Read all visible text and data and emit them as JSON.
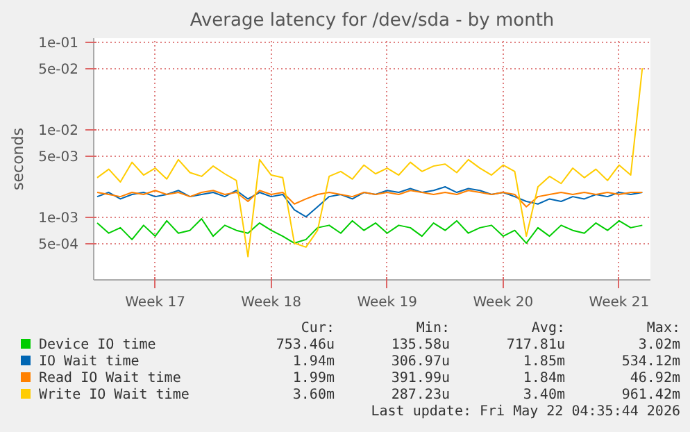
{
  "chart_data": {
    "type": "line",
    "title": "Average latency for /dev/sda - by month",
    "ylabel": "seconds",
    "categories": [
      null,
      null,
      null,
      null,
      null,
      "Week 17",
      null,
      null,
      null,
      null,
      null,
      null,
      null,
      null,
      null,
      "Week 18",
      null,
      null,
      null,
      null,
      null,
      null,
      null,
      null,
      null,
      "Week 19",
      null,
      null,
      null,
      null,
      null,
      null,
      null,
      null,
      null,
      "Week 20",
      null,
      null,
      null,
      null,
      null,
      null,
      null,
      null,
      null,
      "Week 21",
      null,
      null
    ],
    "series": [
      {
        "name": "Device IO time",
        "color": "#00cc00",
        "values": [
          0.00085,
          0.00065,
          0.00075,
          0.00055,
          0.0008,
          0.0006,
          0.0009,
          0.00065,
          0.0007,
          0.00095,
          0.0006,
          0.0008,
          0.0007,
          0.00065,
          0.00085,
          0.0007,
          0.0006,
          0.0005,
          0.00055,
          0.00075,
          0.0008,
          0.00065,
          0.0009,
          0.0007,
          0.00085,
          0.00065,
          0.0008,
          0.00075,
          0.0006,
          0.00085,
          0.0007,
          0.0009,
          0.00065,
          0.00075,
          0.0008,
          0.0006,
          0.0007,
          0.0005,
          0.00075,
          0.0006,
          0.0008,
          0.0007,
          0.00065,
          0.00085,
          0.0007,
          0.0009,
          0.00075,
          0.0008
        ]
      },
      {
        "name": "IO Wait time",
        "color": "#0066b3",
        "values": [
          0.0017,
          0.0019,
          0.0016,
          0.0018,
          0.0019,
          0.0017,
          0.0018,
          0.002,
          0.0017,
          0.0018,
          0.0019,
          0.0017,
          0.002,
          0.0016,
          0.0019,
          0.0017,
          0.0018,
          0.0012,
          0.001,
          0.0013,
          0.0017,
          0.0018,
          0.0016,
          0.0019,
          0.0018,
          0.002,
          0.0019,
          0.0021,
          0.0019,
          0.002,
          0.0022,
          0.0019,
          0.0021,
          0.002,
          0.0018,
          0.0019,
          0.0017,
          0.0015,
          0.0014,
          0.0016,
          0.0015,
          0.0017,
          0.0016,
          0.0018,
          0.0017,
          0.0019,
          0.0018,
          0.0019
        ]
      },
      {
        "name": "Read IO Wait time",
        "color": "#ff8000",
        "values": [
          0.0019,
          0.0018,
          0.0017,
          0.0019,
          0.0018,
          0.002,
          0.0018,
          0.0019,
          0.0017,
          0.0019,
          0.002,
          0.0018,
          0.0019,
          0.0015,
          0.002,
          0.0018,
          0.0019,
          0.0014,
          0.0016,
          0.0018,
          0.0019,
          0.0018,
          0.0017,
          0.0019,
          0.0018,
          0.0019,
          0.0018,
          0.002,
          0.0019,
          0.0018,
          0.0019,
          0.0018,
          0.002,
          0.0019,
          0.0018,
          0.0019,
          0.0018,
          0.0013,
          0.0017,
          0.0018,
          0.0019,
          0.0018,
          0.0019,
          0.0018,
          0.0019,
          0.0018,
          0.0019,
          0.0019
        ]
      },
      {
        "name": "Write IO Wait time",
        "color": "#ffcc00",
        "values": [
          0.0028,
          0.0035,
          0.0025,
          0.0042,
          0.003,
          0.0036,
          0.0027,
          0.0045,
          0.0032,
          0.0029,
          0.0038,
          0.0031,
          0.0026,
          0.00035,
          0.0045,
          0.003,
          0.0028,
          0.0005,
          0.00045,
          0.0007,
          0.0029,
          0.0033,
          0.0027,
          0.0039,
          0.0031,
          0.0036,
          0.003,
          0.0042,
          0.0033,
          0.0038,
          0.004,
          0.0032,
          0.0045,
          0.0036,
          0.003,
          0.0039,
          0.0033,
          0.0006,
          0.0022,
          0.0029,
          0.0024,
          0.0036,
          0.0028,
          0.0035,
          0.0026,
          0.0039,
          0.003,
          0.05
        ]
      }
    ],
    "ylim": [
      0.00019,
      0.11
    ],
    "log": true,
    "yticks": [
      {
        "value": 0.1,
        "label": "1e-01"
      },
      {
        "value": 0.05,
        "label": "5e-02"
      },
      {
        "value": 0.01,
        "label": "1e-02"
      },
      {
        "value": 0.005,
        "label": "5e-03"
      },
      {
        "value": 0.001,
        "label": "1e-03"
      },
      {
        "value": 0.0005,
        "label": "5e-04"
      }
    ],
    "grid": true,
    "legend": "bottom",
    "annotations": [
      "Cur:",
      "Min:",
      "Avg:",
      "Max:",
      "753.46u",
      "135.58u",
      "717.81u",
      "3.02m",
      "1.94m",
      "306.97u",
      "1.85m",
      "534.12m",
      "1.99m",
      "391.99u",
      "1.84m",
      "46.92m",
      "3.60m",
      "287.23u",
      "3.40m",
      "961.42m",
      "Last update: Fri May 22 04:35:44 2026"
    ]
  }
}
